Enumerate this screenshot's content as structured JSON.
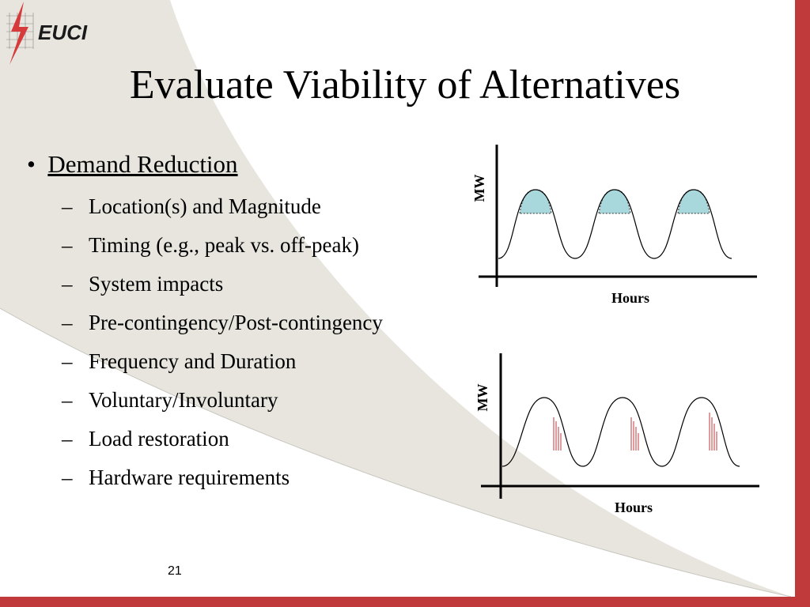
{
  "logo": "EUCI",
  "title": "Evaluate Viability of Alternatives",
  "bullet": {
    "text": "Demand Reduction",
    "items": [
      "Location(s) and Magnitude",
      "Timing (e.g., peak vs. off-peak)",
      "System impacts",
      "Pre-contingency/Post-contingency",
      "Frequency and Duration",
      "Voluntary/Involuntary",
      "Load restoration",
      "Hardware requirements"
    ]
  },
  "diagrams": [
    {
      "y_label": "MW",
      "x_label": "Hours"
    },
    {
      "y_label": "MW",
      "x_label": "Hours"
    }
  ],
  "page_number": "21"
}
